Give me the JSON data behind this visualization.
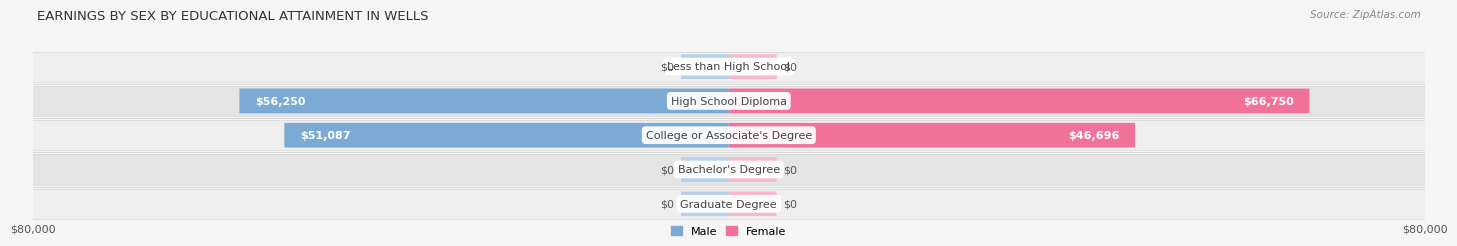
{
  "title": "EARNINGS BY SEX BY EDUCATIONAL ATTAINMENT IN WELLS",
  "source": "Source: ZipAtlas.com",
  "categories": [
    "Less than High School",
    "High School Diploma",
    "College or Associate's Degree",
    "Bachelor's Degree",
    "Graduate Degree"
  ],
  "male_values": [
    0,
    56250,
    51087,
    0,
    0
  ],
  "female_values": [
    0,
    66750,
    46696,
    0,
    0
  ],
  "male_bar_color": "#7baad4",
  "female_bar_color": "#f0729a",
  "male_stub_color": "#b8d0ea",
  "female_stub_color": "#f7b8cc",
  "max_val": 80000,
  "stub_val": 5500,
  "legend_male": "Male",
  "legend_female": "Female",
  "row_colors": [
    "#efefef",
    "#e4e4e4"
  ],
  "fig_bg": "#f5f5f5",
  "title_fontsize": 9.5,
  "label_fontsize": 8,
  "category_fontsize": 8,
  "axis_fontsize": 8,
  "zero_label_color": "#555555",
  "value_label_color": "#ffffff",
  "category_text_color": "#444444"
}
